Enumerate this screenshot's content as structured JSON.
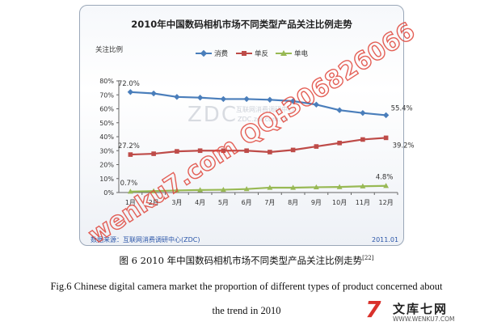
{
  "chart_data": {
    "type": "line",
    "title": "2010年中国数码相机市场不同类型产品关注比例走势",
    "ylabel": "关注比例",
    "xlabel": "",
    "categories": [
      "1月",
      "2月",
      "3月",
      "4月",
      "5月",
      "6月",
      "7月",
      "8月",
      "9月",
      "10月",
      "11月",
      "12月"
    ],
    "y_ticks": [
      "0%",
      "10%",
      "20%",
      "30%",
      "40%",
      "50%",
      "60%",
      "70%",
      "80%"
    ],
    "ylim": [
      0,
      80
    ],
    "grid": false,
    "legend_position": "top",
    "series": [
      {
        "name": "消费",
        "color": "#4a7ebb",
        "marker": "diamond",
        "values": [
          72.0,
          71.0,
          68.5,
          68.0,
          67.0,
          67.0,
          66.5,
          65.5,
          63.0,
          59.0,
          57.0,
          55.4
        ]
      },
      {
        "name": "单反",
        "color": "#be4b48",
        "marker": "square",
        "values": [
          27.2,
          27.8,
          29.5,
          30.0,
          30.0,
          30.0,
          29.0,
          30.5,
          33.0,
          35.5,
          38.0,
          39.2
        ]
      },
      {
        "name": "单电",
        "color": "#98b954",
        "marker": "triangle",
        "values": [
          0.7,
          1.0,
          1.5,
          1.8,
          2.0,
          2.5,
          3.5,
          3.5,
          3.8,
          4.0,
          4.5,
          4.8
        ]
      }
    ],
    "data_labels": [
      {
        "series": 0,
        "index": 0,
        "text": "72.0%"
      },
      {
        "series": 0,
        "index": 11,
        "text": "55.4%"
      },
      {
        "series": 1,
        "index": 0,
        "text": "27.2%"
      },
      {
        "series": 1,
        "index": 11,
        "text": "39.2%"
      },
      {
        "series": 2,
        "index": 0,
        "text": "0.7%"
      },
      {
        "series": 2,
        "index": 11,
        "text": "4.8%"
      }
    ],
    "source": "数据来源：互联网消费调研中心(ZDC)",
    "date": "2011.01"
  },
  "watermarks": {
    "zdc_main": "ZDC",
    "zdc_sub": "互联网消费调研中心",
    "zdc_url": "ZDC.zol.com.cn",
    "red_overlay": "wenku7.com  QQ:306826066"
  },
  "captions": {
    "cn": "图 6  2010 年中国数码相机市场不同类型产品关注比例走势",
    "cn_ref": "[22]",
    "en_line1": "Fig.6 Chinese digital camera market the proportion of different types of product concerned about",
    "en_line2": "the trend in 2010"
  },
  "site_logo": {
    "mark": "7",
    "name": "文库七网",
    "url": "WWW.WENKU7.COM"
  }
}
